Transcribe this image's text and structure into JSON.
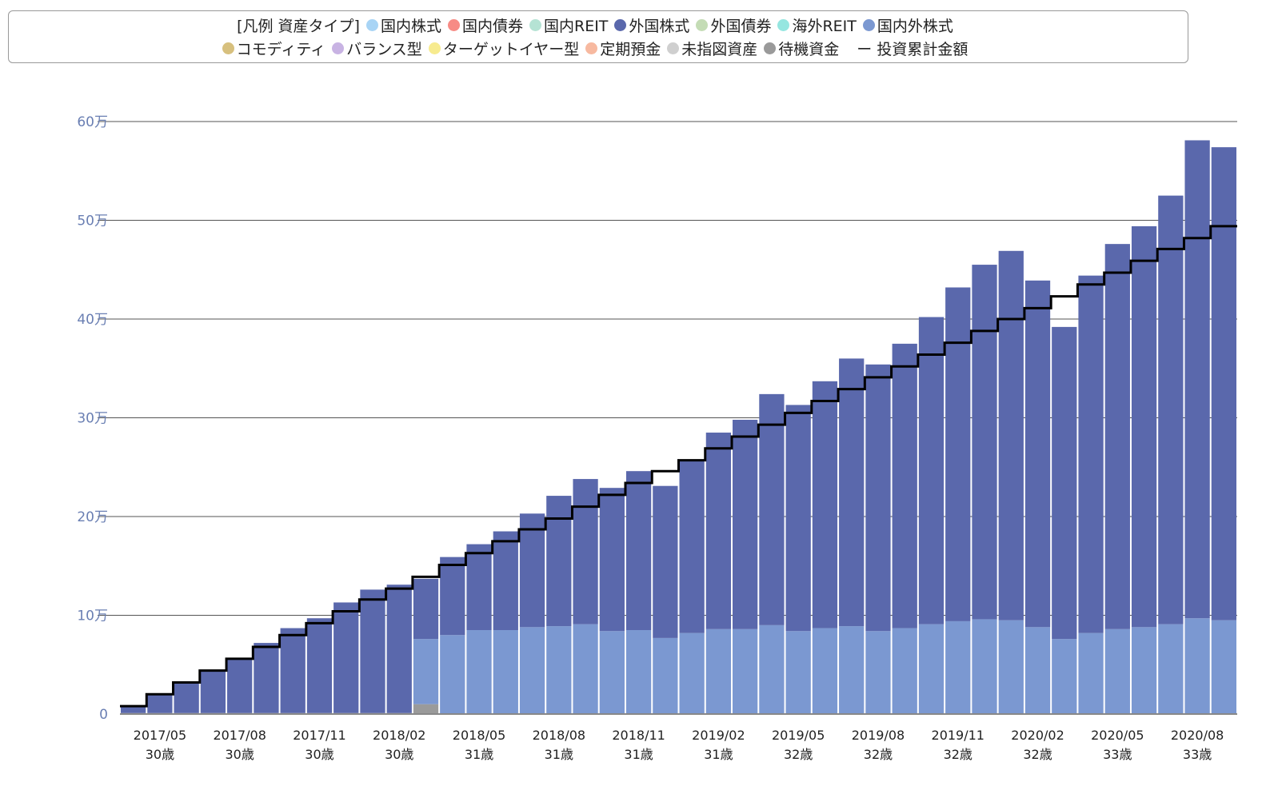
{
  "legend": {
    "title": "[凡例 資産タイプ]",
    "row1": [
      {
        "label": "国内株式",
        "color": "#a8d4f5"
      },
      {
        "label": "国内債券",
        "color": "#f78b85"
      },
      {
        "label": "国内REIT",
        "color": "#b5e3d4"
      },
      {
        "label": "外国株式",
        "color": "#5a68ac"
      },
      {
        "label": "外国債券",
        "color": "#c4dcb5"
      },
      {
        "label": "海外REIT",
        "color": "#95e6e0"
      },
      {
        "label": "国内外株式",
        "color": "#7b98d1"
      }
    ],
    "row2": [
      {
        "label": "コモディティ",
        "color": "#d7c07e"
      },
      {
        "label": "バランス型",
        "color": "#c8b3e3"
      },
      {
        "label": "ターゲットイヤー型",
        "color": "#f7eb8f"
      },
      {
        "label": "定期預金",
        "color": "#f7b9a0"
      },
      {
        "label": "未指図資産",
        "color": "#cfcfcf"
      },
      {
        "label": "待機資金",
        "color": "#9a9a9a"
      }
    ],
    "line_label": "投資累計金額",
    "line_symbol": "ー"
  },
  "chart_data": {
    "type": "bar",
    "stacked": true,
    "y_tick_labels": [
      "0",
      "10万",
      "20万",
      "30万",
      "40万",
      "50万",
      "60万"
    ],
    "ylim": [
      0,
      600000
    ],
    "y_ticks": [
      0,
      100000,
      200000,
      300000,
      400000,
      500000,
      600000
    ],
    "grid": true,
    "legend_position": "top",
    "x_tick_labels": [
      {
        "date": "2017/05",
        "age": "30歳"
      },
      {
        "date": "2017/08",
        "age": "30歳"
      },
      {
        "date": "2017/11",
        "age": "30歳"
      },
      {
        "date": "2018/02",
        "age": "30歳"
      },
      {
        "date": "2018/05",
        "age": "31歳"
      },
      {
        "date": "2018/08",
        "age": "31歳"
      },
      {
        "date": "2018/11",
        "age": "31歳"
      },
      {
        "date": "2019/02",
        "age": "31歳"
      },
      {
        "date": "2019/05",
        "age": "32歳"
      },
      {
        "date": "2019/08",
        "age": "32歳"
      },
      {
        "date": "2019/11",
        "age": "32歳"
      },
      {
        "date": "2020/02",
        "age": "32歳"
      },
      {
        "date": "2020/05",
        "age": "33歳"
      },
      {
        "date": "2020/08",
        "age": "33歳"
      }
    ],
    "x_tick_bar_index": [
      1,
      4,
      7,
      10,
      13,
      16,
      19,
      22,
      25,
      28,
      31,
      34,
      37,
      40
    ],
    "categories": [
      "2017/04",
      "2017/05",
      "2017/06",
      "2017/07",
      "2017/08",
      "2017/09",
      "2017/10",
      "2017/11",
      "2017/12",
      "2018/01",
      "2018/02",
      "2018/03",
      "2018/04",
      "2018/05",
      "2018/06",
      "2018/07",
      "2018/08",
      "2018/09",
      "2018/10",
      "2018/11",
      "2018/12",
      "2019/01",
      "2019/02",
      "2019/03",
      "2019/04",
      "2019/05",
      "2019/06",
      "2019/07",
      "2019/08",
      "2019/09",
      "2019/10",
      "2019/11",
      "2019/12",
      "2020/01",
      "2020/02",
      "2020/03",
      "2020/04",
      "2020/05",
      "2020/06",
      "2020/07",
      "2020/08",
      "2020/09"
    ],
    "series": [
      {
        "name": "待機資金",
        "color": "#9a9a9a",
        "values": [
          1000,
          1000,
          1000,
          1000,
          1000,
          1000,
          1000,
          1000,
          1000,
          1000,
          1000,
          10000,
          0,
          0,
          0,
          0,
          0,
          0,
          0,
          0,
          0,
          0,
          0,
          0,
          0,
          0,
          0,
          0,
          0,
          0,
          0,
          0,
          0,
          0,
          0,
          0,
          0,
          0,
          0,
          0,
          0,
          0
        ]
      },
      {
        "name": "国内外株式",
        "color": "#7b98d1",
        "values": [
          0,
          0,
          0,
          0,
          0,
          0,
          0,
          0,
          0,
          0,
          0,
          66000,
          80000,
          85000,
          85000,
          88000,
          89000,
          91000,
          84000,
          85000,
          77000,
          82000,
          86000,
          86000,
          90000,
          84000,
          87000,
          89000,
          84000,
          87000,
          91000,
          94000,
          96000,
          95000,
          88000,
          76000,
          82000,
          86000,
          88000,
          91000,
          97000,
          95000
        ]
      },
      {
        "name": "外国株式",
        "color": "#5a68ac",
        "values": [
          6000,
          19000,
          31000,
          43000,
          54000,
          71000,
          86000,
          96000,
          112000,
          125000,
          130000,
          61000,
          79000,
          87000,
          100000,
          115000,
          132000,
          147000,
          145000,
          161000,
          154000,
          175000,
          199000,
          212000,
          234000,
          229000,
          250000,
          271000,
          270000,
          288000,
          311000,
          338000,
          359000,
          374000,
          351000,
          316000,
          362000,
          390000,
          406000,
          434000,
          484000,
          479000
        ]
      }
    ],
    "cumulative_investment": {
      "name": "投資累計金額",
      "color": "#000000",
      "values": [
        8000,
        20000,
        32000,
        44000,
        56000,
        68000,
        80000,
        92000,
        104000,
        116000,
        127000,
        139000,
        151000,
        163000,
        175000,
        187000,
        198000,
        210000,
        222000,
        234000,
        246000,
        257000,
        269000,
        281000,
        293000,
        305000,
        317000,
        329000,
        341000,
        352000,
        364000,
        376000,
        388000,
        400000,
        411000,
        423000,
        435000,
        447000,
        459000,
        471000,
        482000,
        494000
      ]
    }
  }
}
